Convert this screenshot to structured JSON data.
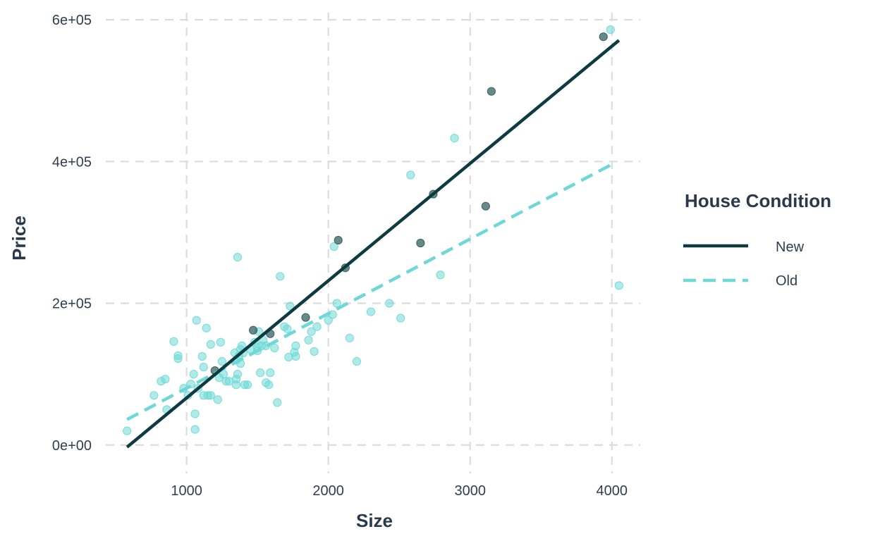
{
  "chart_data": {
    "type": "scatter",
    "title": "",
    "xlabel": "Size",
    "ylabel": "Price",
    "xlim": [
      430,
      4200
    ],
    "ylim": [
      -40000,
      610000
    ],
    "x_ticks": [
      1000,
      2000,
      3000,
      4000
    ],
    "x_tick_labels": [
      "1000",
      "2000",
      "3000",
      "4000"
    ],
    "y_ticks": [
      0,
      200000,
      400000,
      600000
    ],
    "y_tick_labels": [
      "0e+00",
      "2e+05",
      "4e+05",
      "6e+05"
    ],
    "grid": true,
    "grid_style": "dashed",
    "legend": {
      "title": "House Condition",
      "placement": "right",
      "entries": [
        {
          "label": "New",
          "line_style": "solid",
          "color": "#0d3b3f"
        },
        {
          "label": "Old",
          "line_style": "dashed",
          "color": "#6dd8d6"
        }
      ]
    },
    "series": [
      {
        "name": "New",
        "color": "#0d3b3f",
        "point_color": "#2e5b5c",
        "line_style": "solid",
        "points": [
          [
            1200,
            105000
          ],
          [
            1470,
            162000
          ],
          [
            1590,
            157000
          ],
          [
            1840,
            180000
          ],
          [
            2070,
            289000
          ],
          [
            2120,
            250000
          ],
          [
            2650,
            285000
          ],
          [
            2740,
            354000
          ],
          [
            3110,
            337000
          ],
          [
            3150,
            499000
          ],
          [
            3940,
            576000
          ]
        ],
        "fit_line": [
          [
            580,
            -3000
          ],
          [
            4050,
            571000
          ]
        ]
      },
      {
        "name": "Old",
        "color": "#6dd8d6",
        "point_color": "#6dd8d6",
        "line_style": "dashed",
        "points": [
          [
            580,
            20000
          ],
          [
            770,
            70000
          ],
          [
            820,
            90000
          ],
          [
            850,
            93000
          ],
          [
            860,
            50000
          ],
          [
            910,
            146000
          ],
          [
            940,
            126000
          ],
          [
            940,
            122000
          ],
          [
            980,
            80000
          ],
          [
            1010,
            70000
          ],
          [
            1030,
            86000
          ],
          [
            1050,
            100000
          ],
          [
            1060,
            44000
          ],
          [
            1060,
            22000
          ],
          [
            1070,
            176000
          ],
          [
            1080,
            80000
          ],
          [
            1110,
            125000
          ],
          [
            1120,
            110000
          ],
          [
            1120,
            70000
          ],
          [
            1140,
            165000
          ],
          [
            1150,
            70000
          ],
          [
            1170,
            70000
          ],
          [
            1170,
            142000
          ],
          [
            1220,
            64000
          ],
          [
            1230,
            95000
          ],
          [
            1240,
            145000
          ],
          [
            1250,
            118000
          ],
          [
            1260,
            100000
          ],
          [
            1280,
            90000
          ],
          [
            1300,
            90000
          ],
          [
            1340,
            130000
          ],
          [
            1350,
            120000
          ],
          [
            1350,
            85000
          ],
          [
            1350,
            93000
          ],
          [
            1360,
            100000
          ],
          [
            1360,
            265000
          ],
          [
            1370,
            126000
          ],
          [
            1380,
            135000
          ],
          [
            1380,
            115000
          ],
          [
            1390,
            140000
          ],
          [
            1400,
            130000
          ],
          [
            1410,
            85000
          ],
          [
            1430,
            85000
          ],
          [
            1450,
            135000
          ],
          [
            1480,
            145000
          ],
          [
            1500,
            133000
          ],
          [
            1500,
            138000
          ],
          [
            1510,
            160000
          ],
          [
            1520,
            102000
          ],
          [
            1530,
            140000
          ],
          [
            1540,
            148000
          ],
          [
            1560,
            140000
          ],
          [
            1560,
            88000
          ],
          [
            1580,
            85000
          ],
          [
            1590,
            102000
          ],
          [
            1620,
            137000
          ],
          [
            1640,
            60000
          ],
          [
            1660,
            238000
          ],
          [
            1690,
            167000
          ],
          [
            1710,
            164000
          ],
          [
            1720,
            124000
          ],
          [
            1730,
            196000
          ],
          [
            1760,
            131000
          ],
          [
            1770,
            125000
          ],
          [
            1770,
            140000
          ],
          [
            1860,
            148000
          ],
          [
            1880,
            160000
          ],
          [
            1900,
            132000
          ],
          [
            1920,
            167000
          ],
          [
            2000,
            176000
          ],
          [
            2030,
            184000
          ],
          [
            2040,
            280000
          ],
          [
            2060,
            200000
          ],
          [
            2150,
            151000
          ],
          [
            2200,
            118000
          ],
          [
            2300,
            188000
          ],
          [
            2430,
            200000
          ],
          [
            2510,
            179000
          ],
          [
            2580,
            381000
          ],
          [
            2790,
            240000
          ],
          [
            2890,
            433000
          ],
          [
            3990,
            586000
          ],
          [
            4050,
            225000
          ]
        ],
        "fit_line": [
          [
            580,
            36000
          ],
          [
            4000,
            396000
          ]
        ]
      }
    ]
  }
}
